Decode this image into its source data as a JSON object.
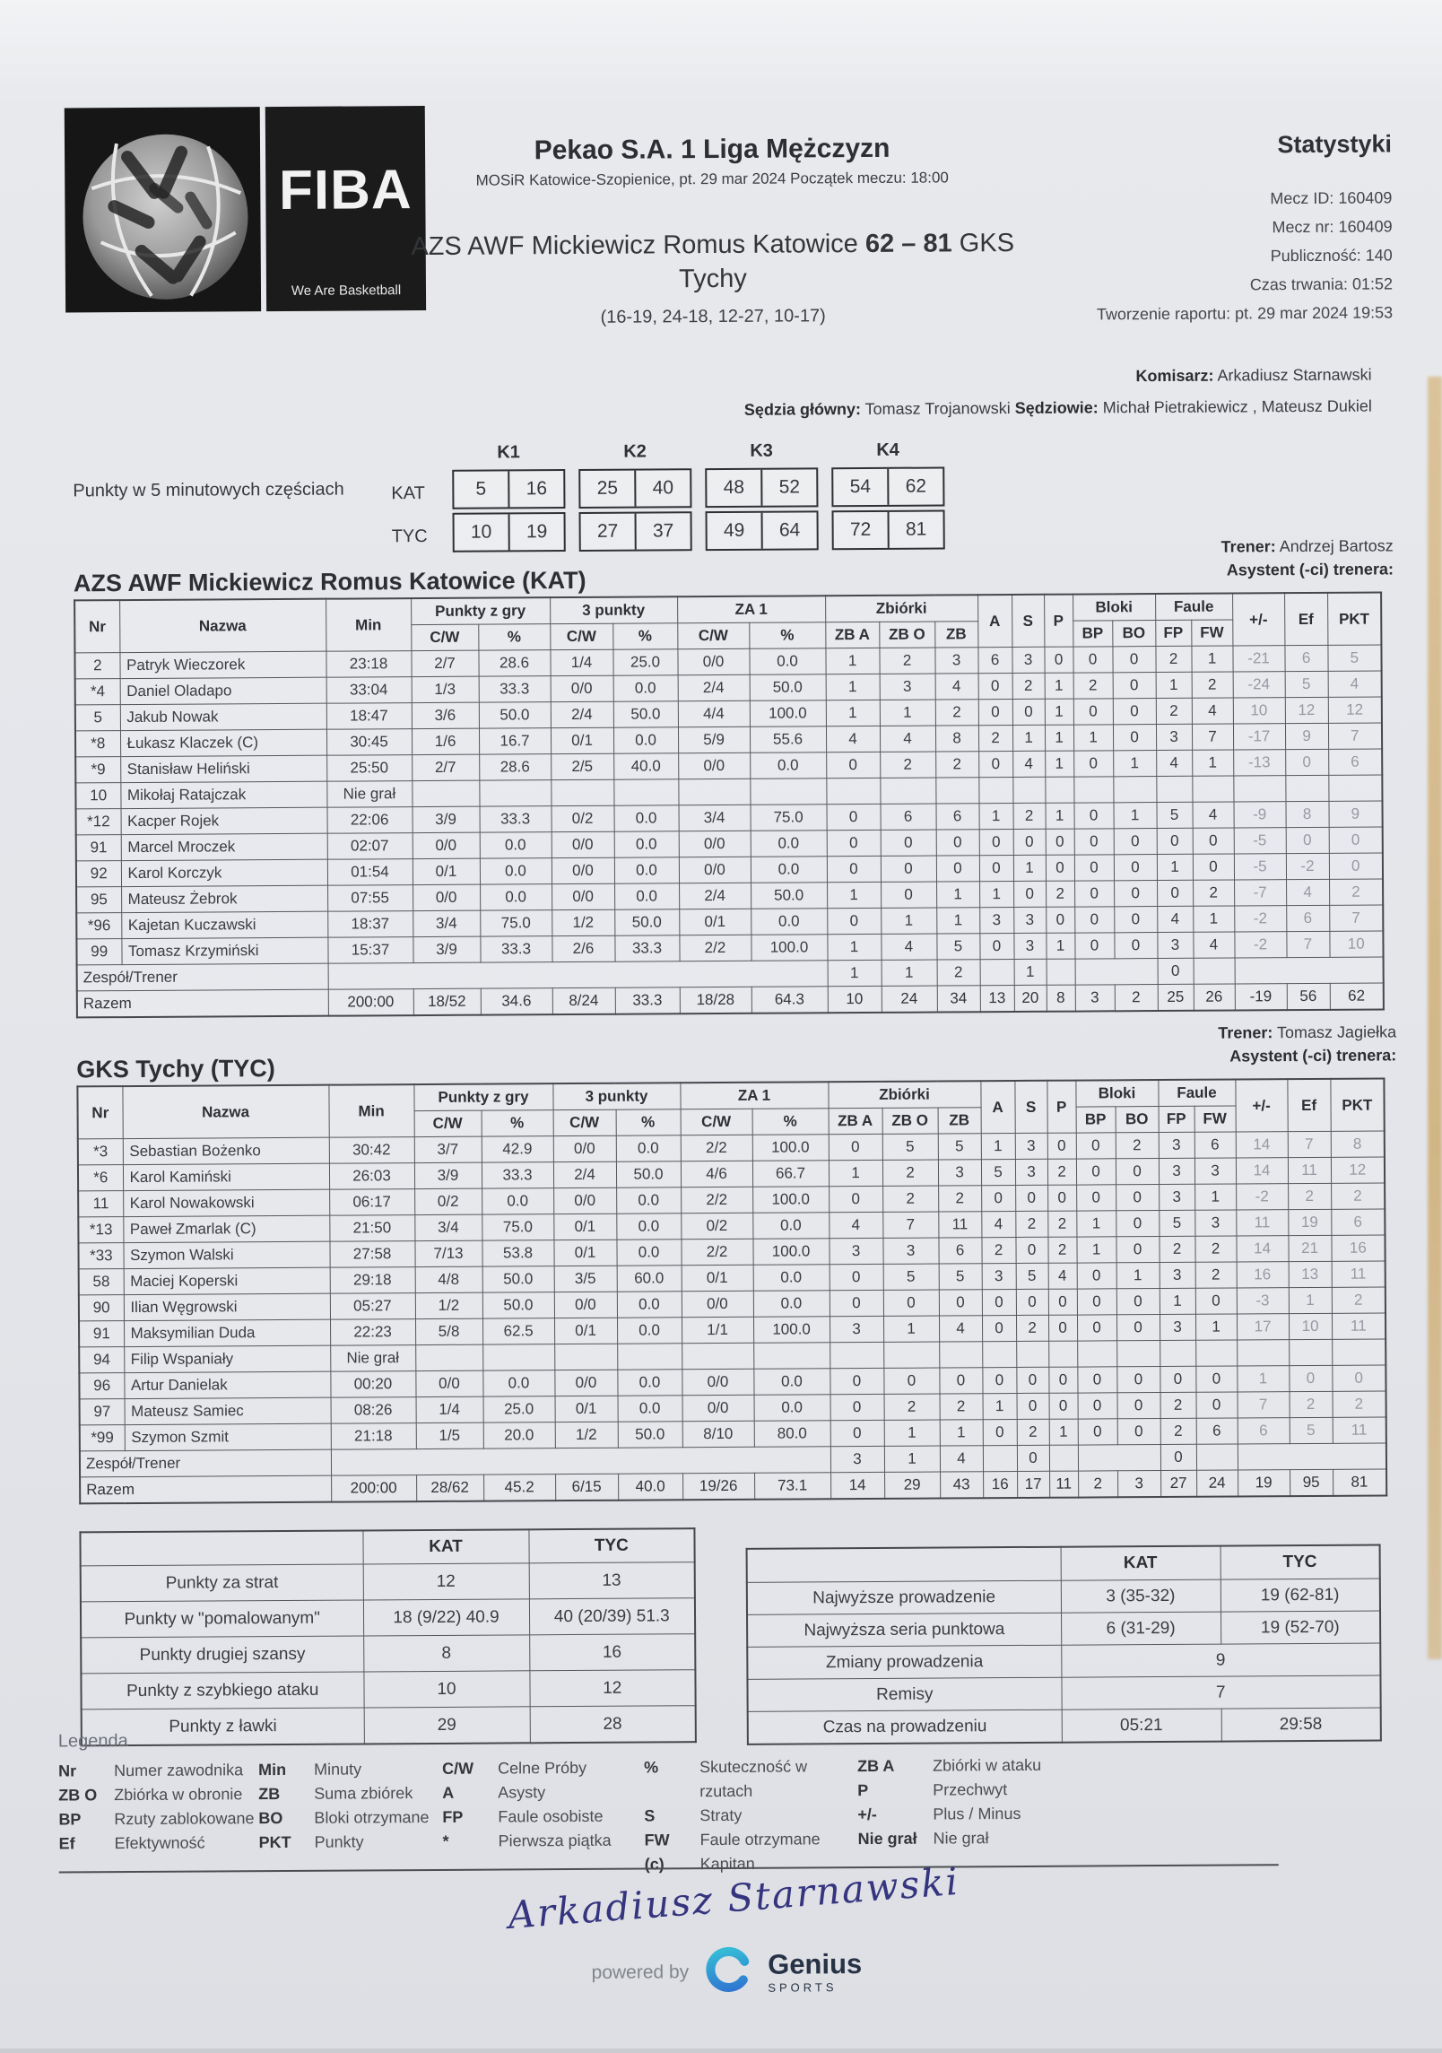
{
  "header": {
    "fiba_word": "FIBA",
    "fiba_tagline": "We Are Basketball",
    "title": "Pekao S.A. 1 Liga Mężczyzn",
    "subtitle": "MOSiR Katowice-Szopienice, pt. 29 mar 2024 Początek meczu: 18:00",
    "score_pre": "AZS AWF Mickiewicz Romus Katowice",
    "score": "62 – 81",
    "score_post": "GKS Tychy",
    "quarters_line": "(16-19, 24-18, 12-27, 10-17)",
    "stats_label": "Statystyki",
    "meta_lines": [
      "Mecz ID: 160409",
      "Mecz nr: 160409",
      "Publiczność: 140",
      "Czas trwania: 01:52",
      "Tworzenie raportu: pt. 29 mar 2024 19:53"
    ],
    "komisarz_label": "Komisarz:",
    "komisarz": "Arkadiusz Starnawski",
    "referee_label1": "Sędzia główny:",
    "referee1": "Tomasz Trojanowski",
    "referee_label2": "Sędziowie:",
    "referees2": "Michał Pietrakiewicz , Mateusz Dukiel"
  },
  "quarter_box": {
    "label": "Punkty w 5 minutowych częściach",
    "periods": [
      "K1",
      "K2",
      "K3",
      "K4"
    ],
    "rows": [
      {
        "team": "KAT",
        "values": [
          [
            "5",
            "16"
          ],
          [
            "25",
            "40"
          ],
          [
            "48",
            "52"
          ],
          [
            "54",
            "62"
          ]
        ]
      },
      {
        "team": "TYC",
        "values": [
          [
            "10",
            "19"
          ],
          [
            "27",
            "37"
          ],
          [
            "49",
            "64"
          ],
          [
            "72",
            "81"
          ]
        ]
      }
    ]
  },
  "table_header": {
    "nr": "Nr",
    "name": "Nazwa",
    "min": "Min",
    "fg": "Punkty z gry",
    "three": "3 punkty",
    "ft": "ZA 1",
    "reb": "Zbiórki",
    "cw": "C/W",
    "pct": "%",
    "zba": "ZB A",
    "zbo": "ZB O",
    "zb": "ZB",
    "a": "A",
    "s": "S",
    "p": "P",
    "blocks": "Bloki",
    "bp": "BP",
    "bo": "BO",
    "fouls": "Faule",
    "fp": "FP",
    "fw": "FW",
    "pm": "+/-",
    "ef": "Ef",
    "pkt": "PKT",
    "team_row": "Zespół/Trener",
    "total_row": "Razem",
    "dnp": "Nie grał"
  },
  "teams": [
    {
      "name": "AZS AWF Mickiewicz Romus Katowice (KAT)",
      "coach_label": "Trener:",
      "coach": "Andrzej Bartosz",
      "assistant_label": "Asystent (-ci) trenera:",
      "players": [
        [
          "2",
          "Patryk Wieczorek",
          "23:18",
          "2/7",
          "28.6",
          "1/4",
          "25.0",
          "0/0",
          "0.0",
          "1",
          "2",
          "3",
          "6",
          "3",
          "0",
          "0",
          "0",
          "2",
          "1",
          "-21",
          "6",
          "5"
        ],
        [
          "*4",
          "Daniel Oladapo",
          "33:04",
          "1/3",
          "33.3",
          "0/0",
          "0.0",
          "2/4",
          "50.0",
          "1",
          "3",
          "4",
          "0",
          "2",
          "1",
          "2",
          "0",
          "1",
          "2",
          "-24",
          "5",
          "4"
        ],
        [
          "5",
          "Jakub Nowak",
          "18:47",
          "3/6",
          "50.0",
          "2/4",
          "50.0",
          "4/4",
          "100.0",
          "1",
          "1",
          "2",
          "0",
          "0",
          "1",
          "0",
          "0",
          "2",
          "4",
          "10",
          "12",
          "12"
        ],
        [
          "*8",
          "Łukasz Klaczek (C)",
          "30:45",
          "1/6",
          "16.7",
          "0/1",
          "0.0",
          "5/9",
          "55.6",
          "4",
          "4",
          "8",
          "2",
          "1",
          "1",
          "1",
          "0",
          "3",
          "7",
          "-17",
          "9",
          "7"
        ],
        [
          "*9",
          "Stanisław Heliński",
          "25:50",
          "2/7",
          "28.6",
          "2/5",
          "40.0",
          "0/0",
          "0.0",
          "0",
          "2",
          "2",
          "0",
          "4",
          "1",
          "0",
          "1",
          "4",
          "1",
          "-13",
          "0",
          "6"
        ],
        [
          "10",
          "Mikołaj Ratajczak",
          "Nie grał",
          "",
          "",
          "",
          "",
          "",
          "",
          "",
          "",
          "",
          "",
          "",
          "",
          "",
          "",
          "",
          "",
          "",
          "",
          ""
        ],
        [
          "*12",
          "Kacper Rojek",
          "22:06",
          "3/9",
          "33.3",
          "0/2",
          "0.0",
          "3/4",
          "75.0",
          "0",
          "6",
          "6",
          "1",
          "2",
          "1",
          "0",
          "1",
          "5",
          "4",
          "-9",
          "8",
          "9"
        ],
        [
          "91",
          "Marcel Mroczek",
          "02:07",
          "0/0",
          "0.0",
          "0/0",
          "0.0",
          "0/0",
          "0.0",
          "0",
          "0",
          "0",
          "0",
          "0",
          "0",
          "0",
          "0",
          "0",
          "0",
          "-5",
          "0",
          "0"
        ],
        [
          "92",
          "Karol Korczyk",
          "01:54",
          "0/1",
          "0.0",
          "0/0",
          "0.0",
          "0/0",
          "0.0",
          "0",
          "0",
          "0",
          "0",
          "1",
          "0",
          "0",
          "0",
          "1",
          "0",
          "-5",
          "-2",
          "0"
        ],
        [
          "95",
          "Mateusz Żebrok",
          "07:55",
          "0/0",
          "0.0",
          "0/0",
          "0.0",
          "2/4",
          "50.0",
          "1",
          "0",
          "1",
          "1",
          "0",
          "2",
          "0",
          "0",
          "0",
          "2",
          "-7",
          "4",
          "2"
        ],
        [
          "*96",
          "Kajetan Kuczawski",
          "18:37",
          "3/4",
          "75.0",
          "1/2",
          "50.0",
          "0/1",
          "0.0",
          "0",
          "1",
          "1",
          "3",
          "3",
          "0",
          "0",
          "0",
          "4",
          "1",
          "-2",
          "6",
          "7"
        ],
        [
          "99",
          "Tomasz Krzymiński",
          "15:37",
          "3/9",
          "33.3",
          "2/6",
          "33.3",
          "2/2",
          "100.0",
          "1",
          "4",
          "5",
          "0",
          "3",
          "1",
          "0",
          "0",
          "3",
          "4",
          "-2",
          "7",
          "10"
        ]
      ],
      "team_row": {
        "zba": "1",
        "zbo": "1",
        "zb": "2",
        "s": "1",
        "fp": "0"
      },
      "totals": [
        "200:00",
        "18/52",
        "34.6",
        "8/24",
        "33.3",
        "18/28",
        "64.3",
        "10",
        "24",
        "34",
        "13",
        "20",
        "8",
        "3",
        "2",
        "25",
        "26",
        "-19",
        "56",
        "62"
      ]
    },
    {
      "name": "GKS Tychy (TYC)",
      "coach_label": "Trener:",
      "coach": "Tomasz Jagiełka",
      "assistant_label": "Asystent (-ci) trenera:",
      "players": [
        [
          "*3",
          "Sebastian Bożenko",
          "30:42",
          "3/7",
          "42.9",
          "0/0",
          "0.0",
          "2/2",
          "100.0",
          "0",
          "5",
          "5",
          "1",
          "3",
          "0",
          "0",
          "2",
          "3",
          "6",
          "14",
          "7",
          "8"
        ],
        [
          "*6",
          "Karol Kamiński",
          "26:03",
          "3/9",
          "33.3",
          "2/4",
          "50.0",
          "4/6",
          "66.7",
          "1",
          "2",
          "3",
          "5",
          "3",
          "2",
          "0",
          "0",
          "3",
          "3",
          "14",
          "11",
          "12"
        ],
        [
          "11",
          "Karol Nowakowski",
          "06:17",
          "0/2",
          "0.0",
          "0/0",
          "0.0",
          "2/2",
          "100.0",
          "0",
          "2",
          "2",
          "0",
          "0",
          "0",
          "0",
          "0",
          "3",
          "1",
          "-2",
          "2",
          "2"
        ],
        [
          "*13",
          "Paweł Zmarlak (C)",
          "21:50",
          "3/4",
          "75.0",
          "0/1",
          "0.0",
          "0/2",
          "0.0",
          "4",
          "7",
          "11",
          "4",
          "2",
          "2",
          "1",
          "0",
          "5",
          "3",
          "11",
          "19",
          "6"
        ],
        [
          "*33",
          "Szymon Walski",
          "27:58",
          "7/13",
          "53.8",
          "0/1",
          "0.0",
          "2/2",
          "100.0",
          "3",
          "3",
          "6",
          "2",
          "0",
          "2",
          "1",
          "0",
          "2",
          "2",
          "14",
          "21",
          "16"
        ],
        [
          "58",
          "Maciej Koperski",
          "29:18",
          "4/8",
          "50.0",
          "3/5",
          "60.0",
          "0/1",
          "0.0",
          "0",
          "5",
          "5",
          "3",
          "5",
          "4",
          "0",
          "1",
          "3",
          "2",
          "16",
          "13",
          "11"
        ],
        [
          "90",
          "Ilian Węgrowski",
          "05:27",
          "1/2",
          "50.0",
          "0/0",
          "0.0",
          "0/0",
          "0.0",
          "0",
          "0",
          "0",
          "0",
          "0",
          "0",
          "0",
          "0",
          "1",
          "0",
          "-3",
          "1",
          "2"
        ],
        [
          "91",
          "Maksymilian Duda",
          "22:23",
          "5/8",
          "62.5",
          "0/1",
          "0.0",
          "1/1",
          "100.0",
          "3",
          "1",
          "4",
          "0",
          "2",
          "0",
          "0",
          "0",
          "3",
          "1",
          "17",
          "10",
          "11"
        ],
        [
          "94",
          "Filip Wspaniały",
          "Nie grał",
          "",
          "",
          "",
          "",
          "",
          "",
          "",
          "",
          "",
          "",
          "",
          "",
          "",
          "",
          "",
          "",
          "",
          "",
          ""
        ],
        [
          "96",
          "Artur Danielak",
          "00:20",
          "0/0",
          "0.0",
          "0/0",
          "0.0",
          "0/0",
          "0.0",
          "0",
          "0",
          "0",
          "0",
          "0",
          "0",
          "0",
          "0",
          "0",
          "0",
          "1",
          "0",
          "0"
        ],
        [
          "97",
          "Mateusz Samiec",
          "08:26",
          "1/4",
          "25.0",
          "0/1",
          "0.0",
          "0/0",
          "0.0",
          "0",
          "2",
          "2",
          "1",
          "0",
          "0",
          "0",
          "0",
          "2",
          "0",
          "7",
          "2",
          "2"
        ],
        [
          "*99",
          "Szymon Szmit",
          "21:18",
          "1/5",
          "20.0",
          "1/2",
          "50.0",
          "8/10",
          "80.0",
          "0",
          "1",
          "1",
          "0",
          "2",
          "1",
          "0",
          "0",
          "2",
          "6",
          "6",
          "5",
          "11"
        ]
      ],
      "team_row": {
        "zba": "3",
        "zbo": "1",
        "zb": "4",
        "s": "0",
        "fp": "0"
      },
      "totals": [
        "200:00",
        "28/62",
        "45.2",
        "6/15",
        "40.0",
        "19/26",
        "73.1",
        "14",
        "29",
        "43",
        "16",
        "17",
        "11",
        "2",
        "3",
        "27",
        "24",
        "19",
        "95",
        "81"
      ]
    }
  ],
  "summary_left": {
    "headers": [
      "KAT",
      "TYC"
    ],
    "rows": [
      {
        "label": "Punkty za strat",
        "kat": "12",
        "tyc": "13"
      },
      {
        "label": "Punkty w \"pomalowanym\"",
        "kat": "18 (9/22) 40.9",
        "tyc": "40 (20/39) 51.3"
      },
      {
        "label": "Punkty drugiej szansy",
        "kat": "8",
        "tyc": "16"
      },
      {
        "label": "Punkty z szybkiego ataku",
        "kat": "10",
        "tyc": "12"
      },
      {
        "label": "Punkty z ławki",
        "kat": "29",
        "tyc": "28"
      }
    ]
  },
  "summary_right": {
    "headers": [
      "KAT",
      "TYC"
    ],
    "rows": [
      {
        "label": "Najwyższe prowadzenie",
        "kat": "3 (35-32)",
        "tyc": "19 (62-81)"
      },
      {
        "label": "Najwyższa seria punktowa",
        "kat": "6 (31-29)",
        "tyc": "19 (52-70)"
      },
      {
        "label": "Zmiany prowadzenia",
        "merged": "9"
      },
      {
        "label": "Remisy",
        "merged": "7"
      },
      {
        "label": "Czas na prowadzeniu",
        "kat": "05:21",
        "tyc": "29:58"
      }
    ]
  },
  "legend": {
    "title": "Legenda",
    "columns": [
      [
        [
          "Nr",
          "Numer zawodnika"
        ],
        [
          "ZB O",
          "Zbiórka w obronie"
        ],
        [
          "BP",
          "Rzuty zablokowane"
        ],
        [
          "Ef",
          "Efektywność"
        ]
      ],
      [
        [
          "Min",
          "Minuty"
        ],
        [
          "ZB",
          "Suma zbiórek"
        ],
        [
          "BO",
          "Bloki otrzymane"
        ],
        [
          "PKT",
          "Punkty"
        ]
      ],
      [
        [
          "C/W",
          "Celne Próby"
        ],
        [
          "A",
          "Asysty"
        ],
        [
          "FP",
          "Faule osobiste"
        ],
        [
          "*",
          "Pierwsza piątka"
        ]
      ],
      [
        [
          "%",
          "Skuteczność w rzutach"
        ],
        [
          "S",
          "Straty"
        ],
        [
          "FW",
          "Faule otrzymane"
        ],
        [
          "(c)",
          "Kapitan"
        ]
      ],
      [
        [
          "ZB A",
          "Zbiórki w ataku"
        ],
        [
          "P",
          "Przechwyt"
        ],
        [
          "+/-",
          "Plus / Minus"
        ],
        [
          "Nie grał",
          "Nie grał"
        ]
      ]
    ]
  },
  "signature": {
    "text": "Arkadiusz Starnawski"
  },
  "footer": {
    "powered_by": "powered by",
    "brand": "Genius",
    "brand_sub": "SPORTS"
  },
  "colors": {
    "accent_teal": "#35c4d7",
    "accent_blue": "#2f6fd0",
    "ink": "#35373d",
    "pen": "#35347e"
  }
}
